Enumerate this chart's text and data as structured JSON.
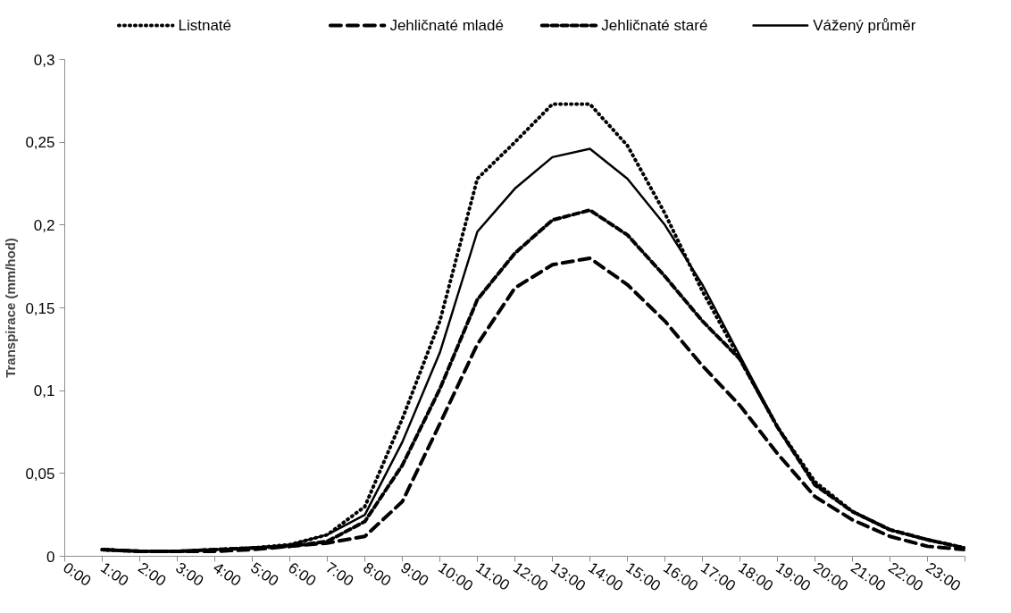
{
  "chart_data": {
    "type": "line",
    "ylabel": "Transpirace (mm/hod)",
    "x": [
      1,
      2,
      3,
      4,
      5,
      6,
      7,
      8,
      9,
      10,
      11,
      12,
      13,
      14,
      15,
      16,
      17,
      18,
      19,
      20,
      21,
      22,
      23,
      24
    ],
    "xlim": [
      0,
      24
    ],
    "xticks": [
      {
        "value": 0,
        "label": "0:00"
      },
      {
        "value": 1,
        "label": "1:00"
      },
      {
        "value": 2,
        "label": "2:00"
      },
      {
        "value": 3,
        "label": "3:00"
      },
      {
        "value": 4,
        "label": "4:00"
      },
      {
        "value": 5,
        "label": "5:00"
      },
      {
        "value": 6,
        "label": "6:00"
      },
      {
        "value": 7,
        "label": "7:00"
      },
      {
        "value": 8,
        "label": "8:00"
      },
      {
        "value": 9,
        "label": "9:00"
      },
      {
        "value": 10,
        "label": "10:00"
      },
      {
        "value": 11,
        "label": "11:00"
      },
      {
        "value": 12,
        "label": "12:00"
      },
      {
        "value": 13,
        "label": "13:00"
      },
      {
        "value": 14,
        "label": "14:00"
      },
      {
        "value": 15,
        "label": "15:00"
      },
      {
        "value": 16,
        "label": "16:00"
      },
      {
        "value": 17,
        "label": "17:00"
      },
      {
        "value": 18,
        "label": "18:00"
      },
      {
        "value": 19,
        "label": "19:00"
      },
      {
        "value": 20,
        "label": "20:00"
      },
      {
        "value": 21,
        "label": "21:00"
      },
      {
        "value": 22,
        "label": "22:00"
      },
      {
        "value": 23,
        "label": "23:00"
      },
      {
        "value": 24,
        "label": null
      }
    ],
    "ylim": [
      0,
      0.3
    ],
    "yticks": [
      0,
      {
        "value": 0.05,
        "label": "0,05"
      },
      {
        "value": 0.1,
        "label": "0,1"
      },
      {
        "value": 0.15,
        "label": "0,15"
      },
      {
        "value": 0.2,
        "label": "0,2"
      },
      {
        "value": 0.25,
        "label": "0,25"
      },
      {
        "value": 0.3,
        "label": "0,3"
      }
    ],
    "grid": false,
    "legend": "top",
    "marker": "none",
    "series": [
      {
        "name": "Listnaté",
        "color": "#000000",
        "line_style": "dotted",
        "values": [
          0.004,
          0.003,
          0.003,
          0.004,
          0.005,
          0.007,
          0.013,
          0.03,
          0.083,
          0.142,
          0.228,
          0.25,
          0.273,
          0.273,
          0.248,
          0.207,
          0.16,
          0.119,
          0.078,
          0.045,
          0.027,
          0.016,
          0.01,
          0.005
        ]
      },
      {
        "name": "Jehličnaté mladé",
        "color": "#000000",
        "line_style": "dashed",
        "values": [
          0.004,
          0.003,
          0.003,
          0.003,
          0.004,
          0.006,
          0.008,
          0.012,
          0.033,
          0.08,
          0.128,
          0.162,
          0.176,
          0.18,
          0.164,
          0.142,
          0.115,
          0.091,
          0.062,
          0.036,
          0.022,
          0.012,
          0.006,
          0.004
        ]
      },
      {
        "name": "Jehličnaté staré",
        "color": "#000000",
        "line_style": "dashed",
        "values": [
          0.004,
          0.003,
          0.003,
          0.004,
          0.005,
          0.006,
          0.009,
          0.021,
          0.055,
          0.101,
          0.155,
          0.183,
          0.203,
          0.209,
          0.194,
          0.169,
          0.142,
          0.119,
          0.078,
          0.043,
          0.027,
          0.016,
          0.01,
          0.005
        ]
      },
      {
        "name": "Vážený průměr",
        "color": "#000000",
        "line_style": "solid",
        "values": [
          0.004,
          0.003,
          0.003,
          0.004,
          0.005,
          0.007,
          0.013,
          0.025,
          0.069,
          0.123,
          0.196,
          0.222,
          0.241,
          0.246,
          0.228,
          0.2,
          0.164,
          0.121,
          0.078,
          0.044,
          0.027,
          0.016,
          0.01,
          0.005
        ]
      }
    ]
  }
}
